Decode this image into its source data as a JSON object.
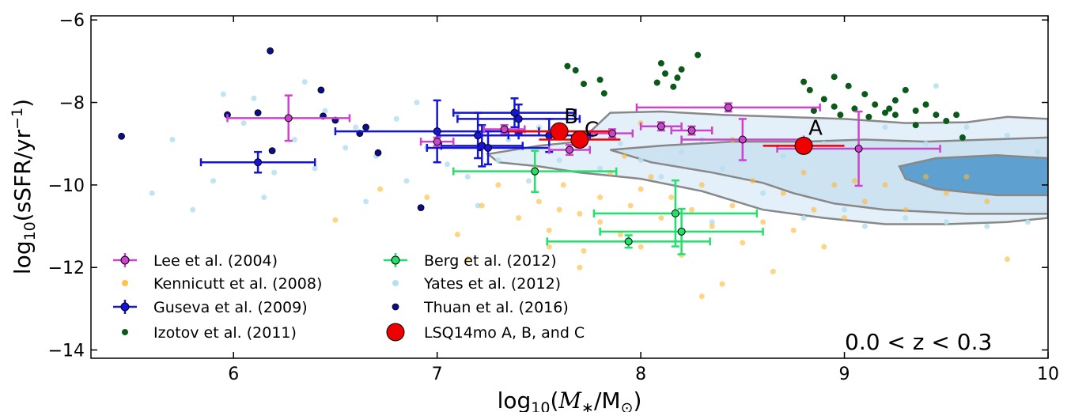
{
  "chart_data": {
    "type": "scatter",
    "xlabel": "log10(M*/M⊙)",
    "ylabel": "log10(sSFR/yr−1)",
    "xlim": [
      5.3,
      10.0
    ],
    "ylim": [
      -14.2,
      -5.9
    ],
    "xticks": [
      6,
      7,
      8,
      9,
      10
    ],
    "yticks": [
      -6,
      -8,
      -10,
      -12,
      -14
    ],
    "xtick_labels": [
      "6",
      "7",
      "8",
      "9",
      "10"
    ],
    "ytick_labels": [
      "−6",
      "−8",
      "−10",
      "−12",
      "−14"
    ],
    "annotation": "0.0 < z < 0.3",
    "point_labels": [
      "A",
      "B",
      "C"
    ],
    "legend_position": "lower-left",
    "colors": {
      "lee": "#cc44cc",
      "kennicutt": "#ffb733",
      "guseva": "#1515d8",
      "izotov": "#0b5a1a",
      "berg": "#22e06a",
      "yates": "#b6dff0",
      "thuan": "#0d0d8a",
      "lsq": "#ee0000",
      "contour_fill_outer": "#e3f0f9",
      "contour_fill_inner": "#cde3f2",
      "contour_fill_core": "#5ea0d0",
      "contour_line": "#888888"
    },
    "series": [
      {
        "name": "Lee et al. (2004)",
        "key": "lee",
        "points": [
          {
            "x": 6.27,
            "y": -8.38,
            "xerr": 0.3,
            "yerr": 0.55
          },
          {
            "x": 7.0,
            "y": -8.95,
            "xerr": 0.08,
            "yerr": 0.1
          },
          {
            "x": 7.33,
            "y": -8.65,
            "xerr": 0.1,
            "yerr": 0.1
          },
          {
            "x": 7.65,
            "y": -9.15,
            "xerr": 0.1,
            "yerr": 0.12
          },
          {
            "x": 7.86,
            "y": -8.75,
            "xerr": 0.1,
            "yerr": 0.1
          },
          {
            "x": 8.1,
            "y": -8.58,
            "xerr": 0.1,
            "yerr": 0.1
          },
          {
            "x": 8.25,
            "y": -8.68,
            "xerr": 0.1,
            "yerr": 0.1
          },
          {
            "x": 8.43,
            "y": -8.12,
            "xerr": 0.45,
            "yerr": 0.1
          },
          {
            "x": 8.5,
            "y": -8.9,
            "xerr": 0.3,
            "yerr": 0.5
          },
          {
            "x": 9.07,
            "y": -9.12,
            "xerr": 0.4,
            "yerr": 0.9
          }
        ]
      },
      {
        "name": "Kennicutt et al. (2008)",
        "key": "kennicutt",
        "points": [
          {
            "x": 6.5,
            "y": -10.85
          },
          {
            "x": 6.72,
            "y": -10.1
          },
          {
            "x": 6.95,
            "y": -10.3
          },
          {
            "x": 7.1,
            "y": -11.2
          },
          {
            "x": 7.15,
            "y": -11.8
          },
          {
            "x": 7.22,
            "y": -10.5
          },
          {
            "x": 7.3,
            "y": -10.0
          },
          {
            "x": 7.4,
            "y": -10.8
          },
          {
            "x": 7.5,
            "y": -10.4
          },
          {
            "x": 7.55,
            "y": -11.1
          },
          {
            "x": 7.55,
            "y": -11.5
          },
          {
            "x": 7.6,
            "y": -10.6
          },
          {
            "x": 7.62,
            "y": -10.0
          },
          {
            "x": 7.7,
            "y": -10.7
          },
          {
            "x": 7.72,
            "y": -11.6
          },
          {
            "x": 7.8,
            "y": -10.3
          },
          {
            "x": 7.8,
            "y": -10.9
          },
          {
            "x": 7.85,
            "y": -9.7
          },
          {
            "x": 7.9,
            "y": -11.2
          },
          {
            "x": 7.95,
            "y": -10.5
          },
          {
            "x": 8.0,
            "y": -10.1
          },
          {
            "x": 8.0,
            "y": -11.5
          },
          {
            "x": 8.05,
            "y": -9.8
          },
          {
            "x": 8.1,
            "y": -10.8
          },
          {
            "x": 8.15,
            "y": -10.3
          },
          {
            "x": 8.2,
            "y": -11.7
          },
          {
            "x": 8.25,
            "y": -10.6
          },
          {
            "x": 8.3,
            "y": -10.0
          },
          {
            "x": 8.35,
            "y": -11.0
          },
          {
            "x": 8.4,
            "y": -12.4
          },
          {
            "x": 8.45,
            "y": -10.5
          },
          {
            "x": 8.5,
            "y": -11.4
          },
          {
            "x": 8.55,
            "y": -9.9
          },
          {
            "x": 8.6,
            "y": -10.9
          },
          {
            "x": 8.7,
            "y": -10.2
          },
          {
            "x": 8.75,
            "y": -11.1
          },
          {
            "x": 8.8,
            "y": -9.7
          },
          {
            "x": 8.85,
            "y": -10.6
          },
          {
            "x": 8.9,
            "y": -11.5
          },
          {
            "x": 8.95,
            "y": -10.0
          },
          {
            "x": 9.0,
            "y": -10.8
          },
          {
            "x": 9.05,
            "y": -9.9
          },
          {
            "x": 9.1,
            "y": -10.4
          },
          {
            "x": 9.2,
            "y": -10.0
          },
          {
            "x": 9.3,
            "y": -10.6
          },
          {
            "x": 9.4,
            "y": -9.8
          },
          {
            "x": 9.5,
            "y": -10.2
          },
          {
            "x": 9.6,
            "y": -9.8
          },
          {
            "x": 9.7,
            "y": -10.4
          },
          {
            "x": 9.8,
            "y": -11.8
          },
          {
            "x": 8.0,
            "y": -8.5
          },
          {
            "x": 8.3,
            "y": -12.7
          },
          {
            "x": 7.7,
            "y": -12.0
          },
          {
            "x": 7.48,
            "y": -9.6
          },
          {
            "x": 8.65,
            "y": -12.1
          },
          {
            "x": 8.45,
            "y": -8.9
          },
          {
            "x": 7.92,
            "y": -9.3
          }
        ]
      },
      {
        "name": "Guseva et al. (2009)",
        "key": "guseva",
        "points": [
          {
            "x": 6.12,
            "y": -9.45,
            "xerr": 0.28,
            "yerr": 0.25
          },
          {
            "x": 7.0,
            "y": -8.7,
            "xerr": 0.5,
            "yerr": 0.75
          },
          {
            "x": 7.2,
            "y": -8.8,
            "xerr": 0.2,
            "yerr": 0.55
          },
          {
            "x": 7.22,
            "y": -9.05,
            "xerr": 0.2,
            "yerr": 0.5
          },
          {
            "x": 7.25,
            "y": -9.1,
            "xerr": 0.3,
            "yerr": 0.4
          },
          {
            "x": 7.38,
            "y": -8.25,
            "xerr": 0.3,
            "yerr": 0.35
          },
          {
            "x": 7.4,
            "y": -8.4,
            "xerr": 0.3,
            "yerr": 0.35
          },
          {
            "x": 7.55,
            "y": -8.8,
            "xerr": 0.2,
            "yerr": 0.4
          }
        ]
      },
      {
        "name": "Izotov et al. (2011)",
        "key": "izotov",
        "points": [
          {
            "x": 7.64,
            "y": -7.12
          },
          {
            "x": 7.68,
            "y": -7.22
          },
          {
            "x": 7.72,
            "y": -7.55
          },
          {
            "x": 7.8,
            "y": -7.45
          },
          {
            "x": 7.82,
            "y": -7.78
          },
          {
            "x": 8.08,
            "y": -7.52
          },
          {
            "x": 8.1,
            "y": -7.05
          },
          {
            "x": 8.12,
            "y": -7.3
          },
          {
            "x": 8.16,
            "y": -7.62
          },
          {
            "x": 8.18,
            "y": -7.4
          },
          {
            "x": 8.2,
            "y": -7.2
          },
          {
            "x": 8.28,
            "y": -6.85
          },
          {
            "x": 8.8,
            "y": -7.5
          },
          {
            "x": 8.83,
            "y": -7.7
          },
          {
            "x": 8.9,
            "y": -7.92
          },
          {
            "x": 8.95,
            "y": -7.38
          },
          {
            "x": 9.02,
            "y": -7.6
          },
          {
            "x": 9.1,
            "y": -7.8
          },
          {
            "x": 9.15,
            "y": -8.05
          },
          {
            "x": 9.22,
            "y": -8.15
          },
          {
            "x": 9.25,
            "y": -8.3
          },
          {
            "x": 9.3,
            "y": -7.7
          },
          {
            "x": 9.35,
            "y": -8.2
          },
          {
            "x": 9.4,
            "y": -8.05
          },
          {
            "x": 9.2,
            "y": -8.25
          },
          {
            "x": 9.12,
            "y": -8.35
          },
          {
            "x": 9.45,
            "y": -8.3
          },
          {
            "x": 9.05,
            "y": -8.15
          },
          {
            "x": 8.95,
            "y": -8.1
          },
          {
            "x": 8.98,
            "y": -8.3
          },
          {
            "x": 9.5,
            "y": -8.45
          },
          {
            "x": 9.55,
            "y": -8.3
          },
          {
            "x": 9.58,
            "y": -8.85
          },
          {
            "x": 9.35,
            "y": -8.55
          },
          {
            "x": 9.25,
            "y": -7.95
          },
          {
            "x": 8.85,
            "y": -8.2
          }
        ]
      },
      {
        "name": "Berg et al. (2012)",
        "key": "berg",
        "points": [
          {
            "x": 7.48,
            "y": -9.67,
            "xerr": 0.4,
            "yerr": 0.5
          },
          {
            "x": 7.94,
            "y": -11.37,
            "xerr": 0.4,
            "yerr": 0.15
          },
          {
            "x": 8.17,
            "y": -10.69,
            "xerr": 0.4,
            "yerr": 0.8
          },
          {
            "x": 8.2,
            "y": -11.13,
            "xerr": 0.4,
            "yerr": 0.55
          }
        ]
      },
      {
        "name": "Yates et al. (2012)",
        "key": "yates",
        "points": [
          {
            "x": 5.8,
            "y": -10.6
          },
          {
            "x": 5.9,
            "y": -9.9
          },
          {
            "x": 5.95,
            "y": -7.8
          },
          {
            "x": 6.05,
            "y": -8.5
          },
          {
            "x": 6.1,
            "y": -7.9
          },
          {
            "x": 6.2,
            "y": -9.7
          },
          {
            "x": 6.3,
            "y": -8.9
          },
          {
            "x": 6.35,
            "y": -7.5
          },
          {
            "x": 6.4,
            "y": -9.6
          },
          {
            "x": 6.45,
            "y": -8.2
          },
          {
            "x": 6.55,
            "y": -9.1
          },
          {
            "x": 6.6,
            "y": -8.6
          },
          {
            "x": 6.7,
            "y": -9.3
          },
          {
            "x": 6.8,
            "y": -8.4
          },
          {
            "x": 6.85,
            "y": -9.9
          },
          {
            "x": 6.9,
            "y": -8.0
          },
          {
            "x": 6.95,
            "y": -9.1
          },
          {
            "x": 7.05,
            "y": -9.5
          },
          {
            "x": 7.1,
            "y": -8.3
          },
          {
            "x": 7.15,
            "y": -9.8
          },
          {
            "x": 7.3,
            "y": -9.4
          },
          {
            "x": 7.35,
            "y": -8.9
          },
          {
            "x": 7.45,
            "y": -9.9
          },
          {
            "x": 7.5,
            "y": -8.6
          },
          {
            "x": 7.6,
            "y": -9.4
          },
          {
            "x": 7.7,
            "y": -8.8
          },
          {
            "x": 7.8,
            "y": -9.6
          },
          {
            "x": 7.9,
            "y": -9.0
          },
          {
            "x": 8.0,
            "y": -9.4
          },
          {
            "x": 8.1,
            "y": -9.8
          },
          {
            "x": 8.2,
            "y": -9.2
          },
          {
            "x": 8.3,
            "y": -8.9
          },
          {
            "x": 8.4,
            "y": -9.6
          },
          {
            "x": 8.5,
            "y": -9.4
          },
          {
            "x": 8.6,
            "y": -10.2
          },
          {
            "x": 8.7,
            "y": -9.3
          },
          {
            "x": 8.8,
            "y": -10.8
          },
          {
            "x": 8.9,
            "y": -9.0
          },
          {
            "x": 9.0,
            "y": -10.6
          },
          {
            "x": 9.1,
            "y": -11.0
          },
          {
            "x": 9.2,
            "y": -8.6
          },
          {
            "x": 9.3,
            "y": -10.8
          },
          {
            "x": 9.4,
            "y": -9.0
          },
          {
            "x": 9.5,
            "y": -10.9
          },
          {
            "x": 9.6,
            "y": -8.6
          },
          {
            "x": 9.7,
            "y": -11.0
          },
          {
            "x": 9.8,
            "y": -8.8
          },
          {
            "x": 9.9,
            "y": -10.9
          },
          {
            "x": 9.95,
            "y": -9.2
          },
          {
            "x": 5.6,
            "y": -10.2
          },
          {
            "x": 5.7,
            "y": -8.9
          },
          {
            "x": 6.15,
            "y": -10.3
          },
          {
            "x": 6.65,
            "y": -10.4
          },
          {
            "x": 7.2,
            "y": -10.5
          },
          {
            "x": 8.35,
            "y": -10.9
          },
          {
            "x": 9.45,
            "y": -7.6
          }
        ]
      },
      {
        "name": "Thuan et al. (2016)",
        "key": "thuan",
        "points": [
          {
            "x": 5.45,
            "y": -8.82
          },
          {
            "x": 5.97,
            "y": -8.3
          },
          {
            "x": 6.12,
            "y": -8.25
          },
          {
            "x": 6.18,
            "y": -6.75
          },
          {
            "x": 6.19,
            "y": -9.17
          },
          {
            "x": 6.43,
            "y": -7.7
          },
          {
            "x": 6.44,
            "y": -8.33
          },
          {
            "x": 6.5,
            "y": -8.43
          },
          {
            "x": 6.62,
            "y": -8.75
          },
          {
            "x": 6.65,
            "y": -8.6
          },
          {
            "x": 6.71,
            "y": -9.22
          },
          {
            "x": 6.92,
            "y": -10.55
          },
          {
            "x": 7.21,
            "y": -9.1
          }
        ]
      },
      {
        "name": "LSQ14mo A, B, and C",
        "key": "lsq",
        "points": [
          {
            "label": "A",
            "x": 8.8,
            "y": -9.05,
            "xerr": 0.2,
            "yerr": 0.0
          },
          {
            "label": "B",
            "x": 7.6,
            "y": -8.7,
            "xerr": 0.25,
            "yerr": 0.0
          },
          {
            "label": "C",
            "x": 7.7,
            "y": -8.9,
            "xerr": 0.2,
            "yerr": 0.0
          }
        ]
      }
    ]
  }
}
